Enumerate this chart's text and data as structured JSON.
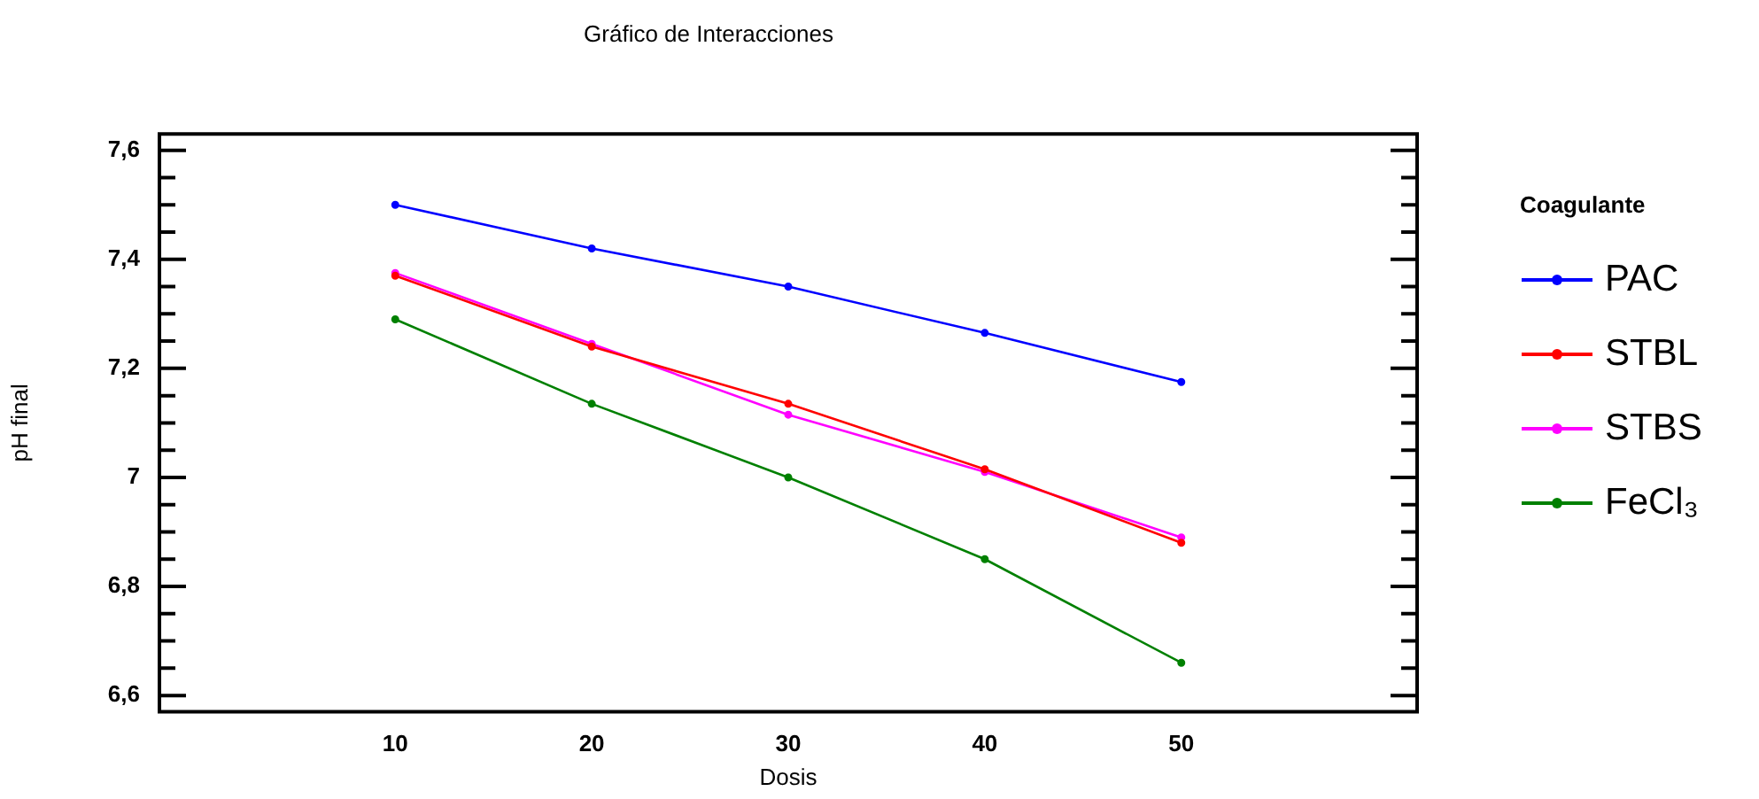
{
  "chart_data": {
    "type": "line",
    "title": "Gráfico de Interacciones",
    "xlabel": "Dosis",
    "ylabel": "pH final",
    "legend_title": "Coagulante",
    "legend": "right",
    "marker": "circle",
    "x": [
      10,
      20,
      30,
      40,
      50
    ],
    "xlim": [
      -2,
      62
    ],
    "xticks": [
      10,
      20,
      30,
      40,
      50
    ],
    "ylim": [
      6.57,
      7.63
    ],
    "yticks": [
      {
        "value": 6.6,
        "label": "6,6"
      },
      {
        "value": 6.65,
        "label": null
      },
      {
        "value": 6.7,
        "label": null
      },
      {
        "value": 6.75,
        "label": null
      },
      {
        "value": 6.8,
        "label": "6,8"
      },
      {
        "value": 6.85,
        "label": null
      },
      {
        "value": 6.9,
        "label": null
      },
      {
        "value": 6.95,
        "label": null
      },
      7,
      {
        "value": 7.05,
        "label": null
      },
      {
        "value": 7.1,
        "label": null
      },
      {
        "value": 7.15,
        "label": null
      },
      {
        "value": 7.2,
        "label": "7,2"
      },
      {
        "value": 7.25,
        "label": null
      },
      {
        "value": 7.3,
        "label": null
      },
      {
        "value": 7.35,
        "label": null
      },
      {
        "value": 7.4,
        "label": "7,4"
      },
      {
        "value": 7.45,
        "label": null
      },
      {
        "value": 7.5,
        "label": null
      },
      {
        "value": 7.55,
        "label": null
      },
      {
        "value": 7.6,
        "label": "7,6"
      }
    ],
    "series": [
      {
        "name": "PAC",
        "color": "#0000ff",
        "values": [
          7.5,
          7.42,
          7.35,
          7.265,
          7.175
        ]
      },
      {
        "name": "STBL",
        "color": "#ff0000",
        "values": [
          7.37,
          7.24,
          7.135,
          7.015,
          6.88
        ]
      },
      {
        "name": "STBS",
        "color": "#ff00ff",
        "values": [
          7.375,
          7.245,
          7.115,
          7.01,
          6.89
        ]
      },
      {
        "name": "FeCl₃",
        "color": "#008000",
        "values": [
          7.29,
          7.135,
          7.0,
          6.85,
          6.66
        ]
      }
    ]
  }
}
